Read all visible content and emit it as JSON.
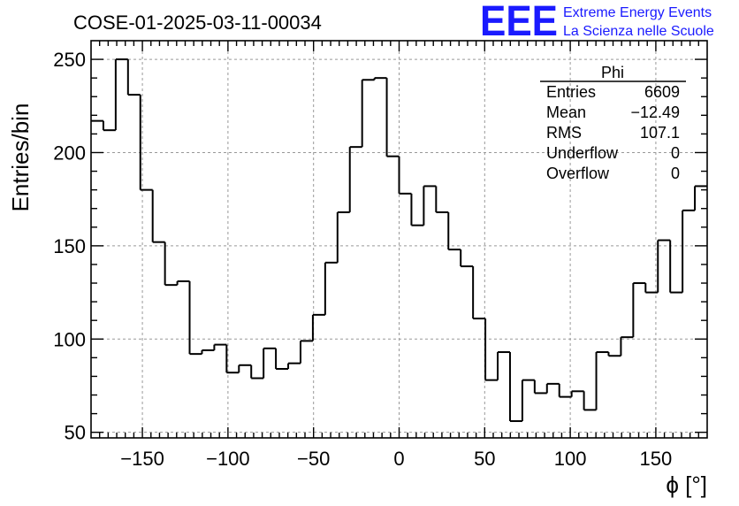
{
  "header": {
    "run_title": "COSE-01-2025-03-11-00034",
    "logo_letters": "EEE",
    "logo_line1": "Extreme Energy Events",
    "logo_line2": "La Scienza nelle Scuole"
  },
  "stats_box": {
    "title": "Phi",
    "rows": [
      {
        "label": "Entries",
        "value": "6609"
      },
      {
        "label": "Mean",
        "value": "−12.49"
      },
      {
        "label": "RMS",
        "value": "107.1"
      },
      {
        "label": "Underflow",
        "value": "0"
      },
      {
        "label": "Overflow",
        "value": "0"
      }
    ]
  },
  "chart_data": {
    "type": "bar",
    "style": "step-histogram",
    "xlabel": "ϕ [°]",
    "ylabel": "Entries/bin",
    "xlim": [
      -180,
      180
    ],
    "ylim": [
      47,
      260
    ],
    "bin_width": 7.2,
    "bin_lows": [
      -180,
      -172.8,
      -165.6,
      -158.4,
      -151.2,
      -144,
      -136.8,
      -129.6,
      -122.4,
      -115.2,
      -108,
      -100.8,
      -93.6,
      -86.4,
      -79.2,
      -72,
      -64.8,
      -57.6,
      -50.4,
      -43.2,
      -36,
      -28.8,
      -21.6,
      -14.4,
      -7.2,
      0,
      7.2,
      14.4,
      21.6,
      28.8,
      36,
      43.2,
      50.4,
      57.6,
      64.8,
      72,
      79.2,
      86.4,
      93.6,
      100.8,
      108,
      115.2,
      122.4,
      129.6,
      136.8,
      144,
      151.2,
      158.4,
      165.6,
      172.8
    ],
    "values": [
      217,
      212,
      250,
      231,
      180,
      152,
      129,
      131,
      92,
      94,
      97,
      82,
      86,
      79,
      95,
      84,
      87,
      99,
      113,
      141,
      168,
      203,
      239,
      240,
      198,
      178,
      161,
      182,
      168,
      148,
      139,
      111,
      78,
      93,
      56,
      78,
      71,
      76,
      69,
      72,
      62,
      93,
      91,
      101,
      130,
      125,
      153,
      125,
      169,
      182
    ],
    "xticks": [
      -150,
      -100,
      -50,
      0,
      50,
      100,
      150
    ],
    "xtick_labels": [
      "−150",
      "−100",
      "−50",
      "0",
      "50",
      "100",
      "150"
    ],
    "yticks": [
      50,
      100,
      150,
      200,
      250
    ],
    "ytick_labels": [
      "50",
      "100",
      "150",
      "200",
      "250"
    ],
    "grid": true,
    "legend": "none"
  },
  "colors": {
    "logo": "#1a1aff",
    "line": "#000000",
    "grid": "#999999"
  }
}
